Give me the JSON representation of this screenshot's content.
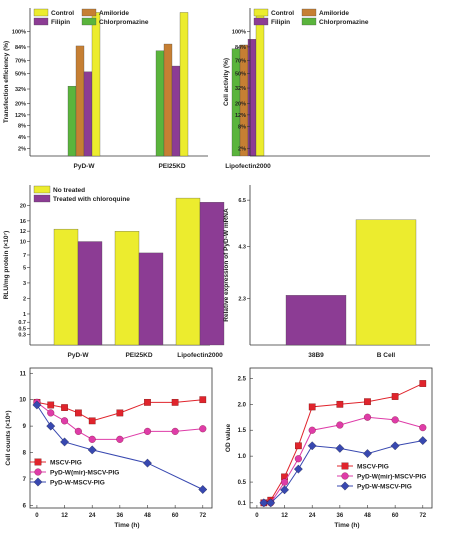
{
  "chart_data": [
    {
      "type": "bar",
      "ylabel": "Transfection efficiency (%)",
      "yticks": [
        "2%",
        "4%",
        "8%",
        "12%",
        "20%",
        "32%",
        "50%",
        "70%",
        "84%",
        "100%"
      ],
      "ylim": [
        0,
        1.5
      ],
      "categories": [
        "PyD-W",
        "PEI25KD",
        "Lipofectin2000"
      ],
      "legend_position": "top-left",
      "series": [
        {
          "name": "Chlorpromazine",
          "color": "#5ab43c",
          "values": [
            0.73,
            1.1,
            1.12
          ]
        },
        {
          "name": "Amiloride",
          "color": "#c67f33",
          "values": [
            1.15,
            1.17,
            1.16
          ]
        },
        {
          "name": "Filipin",
          "color": "#8c3c94",
          "values": [
            0.88,
            0.94,
            1.22
          ]
        },
        {
          "name": "Control",
          "color": "#ecec2e",
          "values": [
            1.5,
            1.5,
            1.5
          ]
        }
      ]
    },
    {
      "type": "bar",
      "ylabel": "Cell activity (%)",
      "yticks": [
        "2%",
        "8%",
        "12%",
        "20%",
        "32%",
        "50%",
        "70%",
        "84%",
        "100%"
      ],
      "ylim": [
        0,
        1.5
      ],
      "categories": [
        "PyD-W",
        "PEI25KD",
        "Lipofectin2000"
      ],
      "legend_position": "top-left",
      "series": [
        {
          "name": "Chlorpromazine",
          "color": "#5ab43c",
          "values": [
            1.12,
            1.11,
            1.22
          ]
        },
        {
          "name": "Amiloride",
          "color": "#c67f33",
          "values": [
            1.13,
            1.17,
            1.16
          ]
        },
        {
          "name": "Filipin",
          "color": "#8c3c94",
          "values": [
            1.22,
            1.16,
            1.18
          ]
        },
        {
          "name": "Control",
          "color": "#ecec2e",
          "values": [
            1.47,
            1.45,
            1.5
          ]
        }
      ]
    },
    {
      "type": "bar",
      "ylabel": "RLU/mg protein (×10⁷)",
      "yticks": [
        "0.3",
        "0.5",
        "0.7",
        "1",
        "2",
        "3",
        "5",
        "7",
        "10",
        "12",
        "16",
        "20"
      ],
      "ylim": [
        0,
        1.5
      ],
      "categories": [
        "PyD-W",
        "PEI25KD",
        "Lipofectin2000"
      ],
      "legend_position": "top-left",
      "series": [
        {
          "name": "No treated",
          "color": "#ecec2e",
          "values": [
            1.12,
            1.1,
            1.42
          ]
        },
        {
          "name": "Treated with chloroquine",
          "color": "#8c3c94",
          "values": [
            1.0,
            0.89,
            1.38
          ]
        }
      ]
    },
    {
      "type": "bar",
      "ylabel": "Relative expression of PyD-W mRNA",
      "yticks": [
        "2.3",
        "4.3",
        "6.5"
      ],
      "ylim": [
        0,
        1.5
      ],
      "categories": [
        "38B9",
        "B Cell"
      ],
      "series": [
        {
          "name": "",
          "colors": [
            "#8c3c94",
            "#ecec2e"
          ],
          "values": [
            0.48,
            1.21
          ]
        }
      ]
    },
    {
      "type": "line",
      "xlabel": "Time (h)",
      "ylabel": "Cell counts (×10⁶)",
      "xticks": [
        "0",
        "12",
        "24",
        "36",
        "48",
        "60",
        "72"
      ],
      "yticks": [
        "6",
        "7",
        "8",
        "9",
        "10",
        "11"
      ],
      "xlim": [
        -3,
        76
      ],
      "ylim": [
        5.9,
        11.2
      ],
      "legend_position": "center-left",
      "series": [
        {
          "name": "MSCV-PIG",
          "color": "#e0242c",
          "marker": "square",
          "x": [
            0,
            6,
            12,
            18,
            24,
            36,
            48,
            60,
            72
          ],
          "y": [
            9.9,
            9.8,
            9.7,
            9.5,
            9.2,
            9.5,
            9.9,
            9.9,
            10.0
          ]
        },
        {
          "name": "PyD-W(mir)-MSCV-PIG",
          "color": "#de3ca8",
          "marker": "circle",
          "x": [
            0,
            6,
            12,
            18,
            24,
            36,
            48,
            60,
            72
          ],
          "y": [
            9.9,
            9.5,
            9.2,
            8.8,
            8.5,
            8.5,
            8.8,
            8.8,
            8.9
          ]
        },
        {
          "name": "PyD-W-MSCV-PIG",
          "color": "#3848b0",
          "marker": "diamond",
          "x": [
            0,
            6,
            12,
            24,
            48,
            72
          ],
          "y": [
            9.8,
            9.0,
            8.4,
            8.1,
            7.6,
            6.6
          ]
        }
      ]
    },
    {
      "type": "line",
      "xlabel": "Time (h)",
      "ylabel": "OD value",
      "xticks": [
        "0",
        "12",
        "24",
        "36",
        "48",
        "60",
        "72"
      ],
      "yticks": [
        "0.1",
        "0.5",
        "1.0",
        "1.5",
        "2.0",
        "2.5"
      ],
      "xlim": [
        -3,
        76
      ],
      "ylim": [
        0,
        2.7
      ],
      "legend_position": "center-right",
      "series": [
        {
          "name": "MSCV-PIG",
          "color": "#e0242c",
          "marker": "square",
          "x": [
            3,
            6,
            12,
            18,
            24,
            36,
            48,
            60,
            72
          ],
          "y": [
            0.1,
            0.15,
            0.6,
            1.2,
            1.95,
            2.0,
            2.05,
            2.15,
            2.4
          ]
        },
        {
          "name": "PyD-W(mir)-MSCV-PIG",
          "color": "#de3ca8",
          "marker": "circle",
          "x": [
            3,
            6,
            12,
            18,
            24,
            36,
            48,
            60,
            72
          ],
          "y": [
            0.1,
            0.1,
            0.5,
            0.95,
            1.5,
            1.6,
            1.75,
            1.7,
            1.55
          ]
        },
        {
          "name": "PyD-W-MSCV-PIG",
          "color": "#3848b0",
          "marker": "diamond",
          "x": [
            3,
            6,
            12,
            18,
            24,
            36,
            48,
            60,
            72
          ],
          "y": [
            0.1,
            0.1,
            0.35,
            0.75,
            1.2,
            1.15,
            1.05,
            1.2,
            1.3
          ]
        }
      ]
    }
  ]
}
